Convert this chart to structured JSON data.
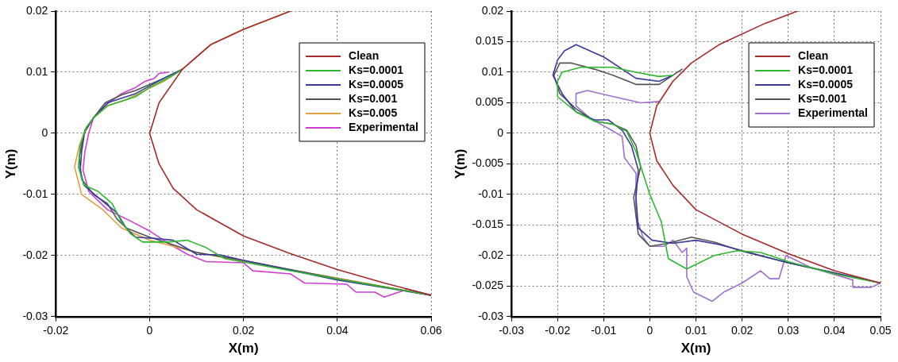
{
  "chart_data": [
    {
      "type": "line",
      "xlabel": "X(m)",
      "ylabel": "Y(m)",
      "xlim": [
        -0.02,
        0.06
      ],
      "ylim": [
        -0.03,
        0.02
      ],
      "xticks": [
        -0.02,
        0,
        0.02,
        0.04,
        0.06
      ],
      "yticks": [
        -0.03,
        -0.02,
        -0.01,
        0,
        0.01,
        0.02
      ],
      "grid": true,
      "legend": "top right",
      "marker": "none",
      "line_style": "solid",
      "series": [
        {
          "name": "Clean",
          "color": "#a52a2a",
          "x": [
            0.06,
            0.05,
            0.04,
            0.03,
            0.02,
            0.01,
            0.005,
            0.002,
            0,
            0.002,
            0.007,
            0.013,
            0.02,
            0.03
          ],
          "values": [
            -0.0265,
            -0.0245,
            -0.0223,
            -0.0197,
            -0.0168,
            -0.0125,
            -0.009,
            -0.005,
            0,
            0.005,
            0.0105,
            0.0145,
            0.017,
            0.02
          ]
        },
        {
          "name": "Ks=0.0001",
          "color": "#2eb82e",
          "x": [
            0.007,
            0.005,
            0,
            -0.001,
            -0.003,
            -0.009,
            -0.012,
            -0.0135,
            -0.0148,
            -0.0152,
            -0.014,
            -0.011,
            -0.008,
            -0.006,
            -0.004,
            -0.0015,
            0.004,
            0.008,
            0.012,
            0.016,
            0.03,
            0.045,
            0.06
          ],
          "values": [
            0.0105,
            0.0095,
            0.0075,
            0.007,
            0.006,
            0.0045,
            0.0025,
            0.001,
            -0.002,
            -0.0055,
            -0.0085,
            -0.0095,
            -0.0115,
            -0.0145,
            -0.0165,
            -0.0178,
            -0.0178,
            -0.0175,
            -0.0187,
            -0.0205,
            -0.0225,
            -0.0245,
            -0.0265
          ]
        },
        {
          "name": "Ks=0.0005",
          "color": "#3a3a9c",
          "x": [
            0.007,
            0.003,
            -0.003,
            -0.009,
            -0.012,
            -0.0138,
            -0.0145,
            -0.0148,
            -0.014,
            -0.011,
            -0.007,
            -0.005,
            -0.003,
            0.001,
            0.005,
            0.01,
            0.015,
            0.02,
            0.04,
            0.06
          ],
          "values": [
            0.0105,
            0.009,
            0.0065,
            0.005,
            0.0025,
            0.0005,
            -0.003,
            -0.006,
            -0.0085,
            -0.0105,
            -0.013,
            -0.0155,
            -0.017,
            -0.0172,
            -0.0175,
            -0.0198,
            -0.0199,
            -0.0208,
            -0.024,
            -0.0265
          ]
        },
        {
          "name": "Ks=0.001",
          "color": "#555555",
          "x": [
            0.007,
            0.003,
            -0.003,
            -0.006,
            -0.0095,
            -0.012,
            -0.014,
            -0.015,
            -0.0145,
            -0.012,
            -0.009,
            -0.007,
            -0.005,
            0,
            0.01,
            0.02,
            0.04,
            0.06
          ],
          "values": [
            0.0105,
            0.009,
            0.007,
            0.0063,
            0.005,
            0.0025,
            0,
            -0.004,
            -0.0075,
            -0.01,
            -0.0115,
            -0.014,
            -0.0155,
            -0.017,
            -0.0195,
            -0.0208,
            -0.0238,
            -0.0265
          ]
        },
        {
          "name": "Ks=0.005",
          "color": "#e0a040",
          "x": [
            0.03,
            0.02,
            0.013,
            0.007,
            0.005,
            0.003,
            -0.001,
            -0.005,
            -0.009,
            -0.012,
            -0.014,
            -0.015,
            -0.016,
            -0.0145,
            -0.01,
            -0.006,
            0,
            0.01,
            0.02,
            0.04,
            0.06
          ],
          "values": [
            0.02,
            0.017,
            0.0145,
            0.0105,
            0.0095,
            0.0085,
            0.007,
            0.0055,
            0.0045,
            0.0025,
            0,
            -0.002,
            -0.0055,
            -0.01,
            -0.0125,
            -0.0155,
            -0.0175,
            -0.0195,
            -0.021,
            -0.0237,
            -0.0265
          ]
        },
        {
          "name": "Experimental",
          "color": "#d040d0",
          "x": [
            0.004,
            0.002,
            0.001,
            -0.001,
            -0.003,
            -0.006,
            -0.009,
            -0.012,
            -0.013,
            -0.0138,
            -0.0142,
            -0.013,
            -0.009,
            -0.005,
            0,
            0.004,
            0.008,
            0.012,
            0.02,
            0.022,
            0.03,
            0.033,
            0.042,
            0.044,
            0.048,
            0.05,
            0.055,
            0.06
          ],
          "values": [
            0.01,
            0.0098,
            0.009,
            0.0085,
            0.0075,
            0.0065,
            0.0048,
            0.0025,
            0,
            -0.003,
            -0.006,
            -0.0095,
            -0.0125,
            -0.014,
            -0.016,
            -0.018,
            -0.0198,
            -0.021,
            -0.0212,
            -0.0225,
            -0.023,
            -0.0245,
            -0.0247,
            -0.026,
            -0.026,
            -0.0268,
            -0.0255,
            -0.0265
          ]
        }
      ]
    },
    {
      "type": "line",
      "xlabel": "X(m)",
      "ylabel": "Y(m)",
      "xlim": [
        -0.03,
        0.05
      ],
      "ylim": [
        -0.03,
        0.02
      ],
      "xticks": [
        -0.03,
        -0.02,
        -0.01,
        0,
        0.01,
        0.02,
        0.03,
        0.04,
        0.05
      ],
      "yticks": [
        -0.03,
        -0.025,
        -0.02,
        -0.015,
        -0.01,
        -0.005,
        0,
        0.005,
        0.01,
        0.015,
        0.02
      ],
      "grid": true,
      "legend": "top right",
      "marker": "none",
      "line_style": "solid",
      "series": [
        {
          "name": "Clean",
          "color": "#a52a2a",
          "x": [
            0.05,
            0.04,
            0.03,
            0.02,
            0.01,
            0.005,
            0.0015,
            0,
            0.0015,
            0.005,
            0.009,
            0.015,
            0.025,
            0.032
          ],
          "values": [
            -0.0245,
            -0.0225,
            -0.0197,
            -0.0165,
            -0.0125,
            -0.0085,
            -0.0045,
            0,
            0.0045,
            0.0085,
            0.0115,
            0.0145,
            0.018,
            0.02
          ]
        },
        {
          "name": "Ks=0.0001",
          "color": "#2eb82e",
          "x": [
            0.005,
            0.002,
            -0.003,
            -0.008,
            -0.015,
            -0.019,
            -0.02,
            -0.02,
            -0.016,
            -0.012,
            -0.008,
            -0.005,
            -0.003,
            -0.0015,
            0,
            0.0025,
            0.004,
            0.008,
            0.014,
            0.019,
            0.024,
            0.03,
            0.04,
            0.05
          ],
          "values": [
            0.0095,
            0.0093,
            0.01,
            0.0108,
            0.0108,
            0.01,
            0.0085,
            0.006,
            0.0035,
            0.002,
            0.0015,
            0.0003,
            -0.003,
            -0.0065,
            -0.01,
            -0.0145,
            -0.0205,
            -0.0222,
            -0.02,
            -0.0192,
            -0.0195,
            -0.021,
            -0.023,
            -0.0245
          ]
        },
        {
          "name": "Ks=0.0005",
          "color": "#3a3a9c",
          "x": [
            0.005,
            0.002,
            -0.003,
            -0.01,
            -0.016,
            -0.0185,
            -0.02,
            -0.021,
            -0.019,
            -0.016,
            -0.012,
            -0.009,
            -0.006,
            -0.004,
            -0.0025,
            -0.003,
            -0.0025,
            0.0005,
            0.005,
            0.01,
            0.015,
            0.02,
            0.03,
            0.05
          ],
          "values": [
            0.0095,
            0.0085,
            0.009,
            0.0125,
            0.0145,
            0.0135,
            0.012,
            0.0095,
            0.0065,
            0.0035,
            0.0022,
            0.0022,
            0.0005,
            -0.002,
            -0.006,
            -0.0105,
            -0.0155,
            -0.0175,
            -0.018,
            -0.0175,
            -0.0182,
            -0.0192,
            -0.0212,
            -0.0245
          ]
        },
        {
          "name": "Ks=0.001",
          "color": "#555555",
          "x": [
            0.007,
            0.004,
            0.002,
            -0.003,
            -0.008,
            -0.012,
            -0.017,
            -0.0195,
            -0.0208,
            -0.0195,
            -0.016,
            -0.012,
            -0.008,
            -0.005,
            -0.003,
            -0.002,
            -0.0035,
            -0.0025,
            0,
            0.004,
            0.009,
            0.014,
            0.02,
            0.03,
            0.05
          ],
          "values": [
            0.0105,
            0.009,
            0.008,
            0.008,
            0.0095,
            0.0105,
            0.0115,
            0.0115,
            0.0095,
            0.0065,
            0.004,
            0.002,
            0.0015,
            0.0005,
            -0.002,
            -0.0055,
            -0.0105,
            -0.0165,
            -0.0185,
            -0.018,
            -0.017,
            -0.0178,
            -0.0193,
            -0.0212,
            -0.0245
          ]
        },
        {
          "name": "Experimental",
          "color": "#a070d0",
          "x": [
            0.002,
            -0.002,
            -0.005,
            -0.009,
            -0.0135,
            -0.016,
            -0.016,
            -0.013,
            -0.009,
            -0.006,
            -0.0055,
            -0.003,
            -0.003,
            -0.0015,
            0,
            0.003,
            0.005,
            0.007,
            0.008,
            0.008,
            0.0095,
            0.0135,
            0.016,
            0.02,
            0.024,
            0.026,
            0.028,
            0.0295,
            0.035,
            0.044,
            0.044,
            0.048,
            0.05
          ],
          "values": [
            0.0052,
            0.005,
            0.0055,
            0.0062,
            0.007,
            0.0065,
            0.0045,
            0.0025,
            0.0008,
            -0.0005,
            -0.004,
            -0.0065,
            -0.0135,
            -0.017,
            -0.0185,
            -0.0185,
            -0.0175,
            -0.0195,
            -0.0188,
            -0.0235,
            -0.026,
            -0.0275,
            -0.026,
            -0.0245,
            -0.0225,
            -0.0238,
            -0.0238,
            -0.02,
            -0.022,
            -0.024,
            -0.0252,
            -0.0252,
            -0.0245
          ]
        }
      ]
    }
  ]
}
